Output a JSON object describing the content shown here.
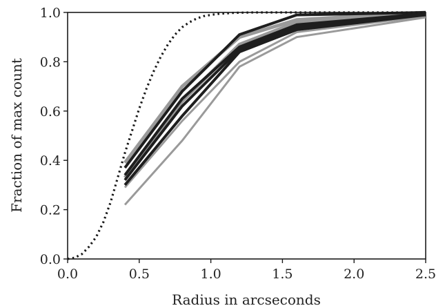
{
  "chart_data": {
    "type": "line",
    "title": "",
    "xlabel": "Radius in arcseconds",
    "ylabel": "Fraction of max count",
    "xlim": [
      0.0,
      2.5
    ],
    "ylim": [
      0.0,
      1.0
    ],
    "xticks": [
      "0.0",
      "0.5",
      "1.0",
      "1.5",
      "2.0",
      "2.5"
    ],
    "yticks": [
      "0.0",
      "0.2",
      "0.4",
      "0.6",
      "0.8",
      "1.0"
    ],
    "grid": false,
    "legend": "none",
    "reference_curve": {
      "style": "dotted",
      "color": "#1a1a1a",
      "x": [
        0.0,
        0.05,
        0.1,
        0.15,
        0.2,
        0.25,
        0.3,
        0.35,
        0.4,
        0.45,
        0.5,
        0.55,
        0.6,
        0.65,
        0.7,
        0.75,
        0.8,
        0.85,
        0.9,
        0.95,
        1.0,
        1.05,
        1.1,
        1.15,
        1.2,
        1.3,
        1.4,
        1.5,
        1.6,
        1.8,
        2.0,
        2.2,
        2.5
      ],
      "y": [
        0.0,
        0.005,
        0.02,
        0.05,
        0.09,
        0.15,
        0.23,
        0.33,
        0.43,
        0.52,
        0.61,
        0.69,
        0.76,
        0.82,
        0.87,
        0.91,
        0.94,
        0.96,
        0.975,
        0.985,
        0.99,
        0.994,
        0.996,
        0.998,
        0.999,
        1.0,
        1.0,
        1.0,
        1.0,
        1.0,
        1.0,
        1.0,
        1.0
      ]
    },
    "x": [
      0.4,
      0.8,
      1.2,
      1.6,
      2.5
    ],
    "series": [
      {
        "color": "#9a9a9a",
        "width": 3,
        "values": [
          0.22,
          0.48,
          0.78,
          0.9,
          0.98
        ]
      },
      {
        "color": "#9a9a9a",
        "width": 3,
        "values": [
          0.29,
          0.56,
          0.8,
          0.92,
          0.985
        ]
      },
      {
        "color": "#9a9a9a",
        "width": 5,
        "values": [
          0.39,
          0.7,
          0.9,
          0.97,
          1.0
        ]
      },
      {
        "color": "#9a9a9a",
        "width": 5,
        "values": [
          0.33,
          0.64,
          0.87,
          0.96,
          0.995
        ]
      },
      {
        "color": "#1e1e1e",
        "width": 4,
        "values": [
          0.3,
          0.58,
          0.84,
          0.93,
          0.99
        ]
      },
      {
        "color": "#1e1e1e",
        "width": 4,
        "values": [
          0.32,
          0.62,
          0.85,
          0.94,
          0.99
        ]
      },
      {
        "color": "#1e1e1e",
        "width": 4,
        "values": [
          0.34,
          0.65,
          0.86,
          0.95,
          0.995
        ]
      },
      {
        "color": "#1e1e1e",
        "width": 4,
        "values": [
          0.37,
          0.68,
          0.91,
          0.99,
          1.0
        ]
      }
    ]
  }
}
